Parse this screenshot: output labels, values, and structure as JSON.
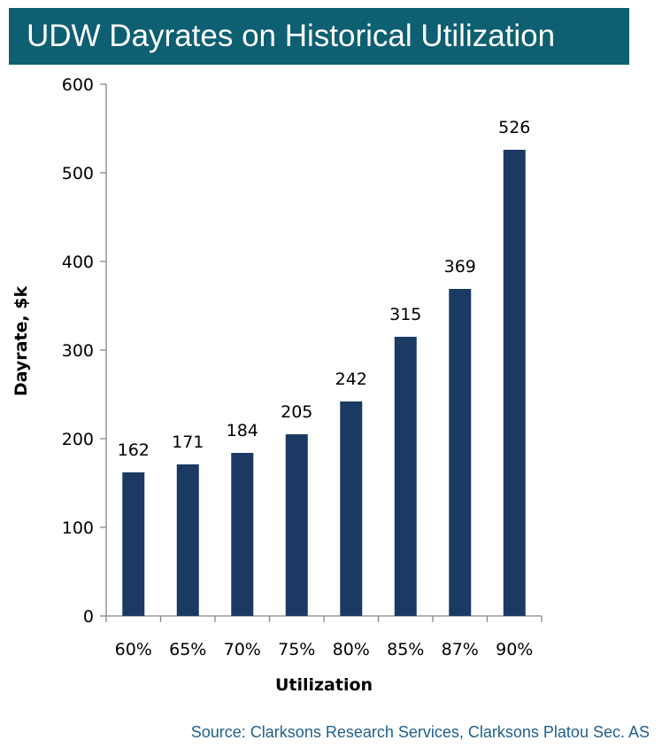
{
  "title": "UDW Dayrates on Historical Utilization",
  "source": "Source: Clarksons Research Services, Clarksons Platou Sec. AS",
  "colors": {
    "title_bg": "#0e5f72",
    "bar": "#1b3a63",
    "source_text": "#1f5f8c"
  },
  "chart_data": {
    "type": "bar",
    "title": "",
    "xlabel": "Utilization",
    "ylabel": "Dayrate, $k",
    "categories": [
      "60%",
      "65%",
      "70%",
      "75%",
      "80%",
      "85%",
      "87%",
      "90%"
    ],
    "values": [
      162,
      171,
      184,
      205,
      242,
      315,
      369,
      526
    ],
    "ylim": [
      0,
      600
    ],
    "yticks": [
      0,
      100,
      200,
      300,
      400,
      500,
      600
    ],
    "grid": false,
    "legend": "none",
    "data_labels": true
  }
}
